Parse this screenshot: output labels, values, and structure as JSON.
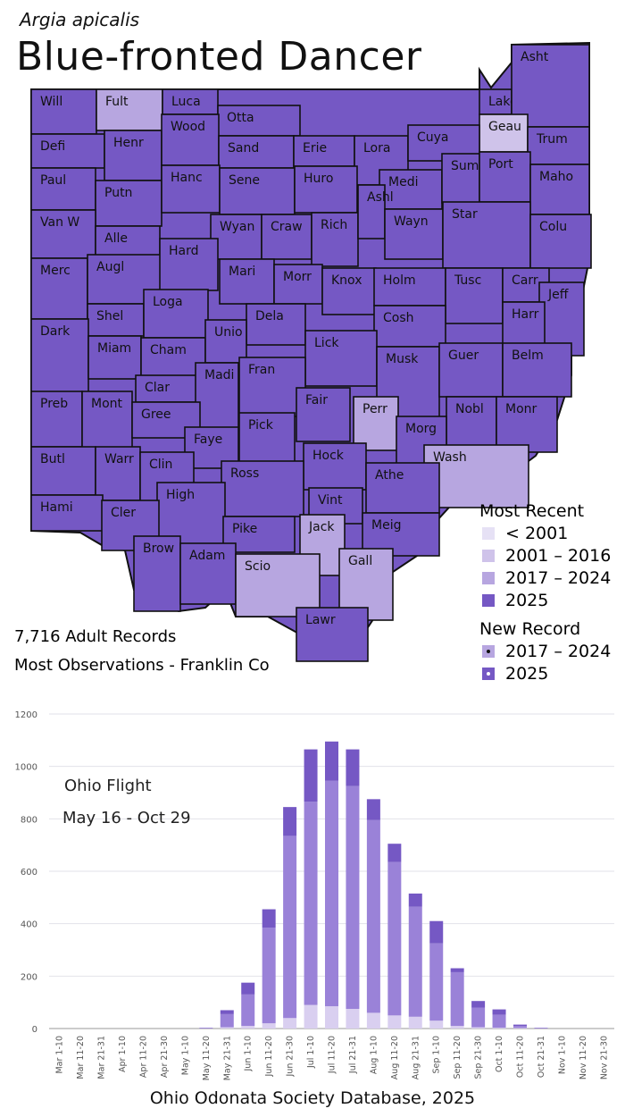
{
  "header": {
    "scientific_name": "Argia apicalis",
    "common_name": "Blue-fronted Dancer"
  },
  "colors": {
    "pre_2001": "#e6e1f5",
    "y2001_2016": "#cfc3ea",
    "y2017_2024": "#b7a6e0",
    "y2025": "#7558c4",
    "bar_bottom": "#d9cff0",
    "bar_middle": "#9a82d8",
    "bar_top": "#7558c4"
  },
  "map": {
    "counties": [
      {
        "name": "Will",
        "status": "2025"
      },
      {
        "name": "Fult",
        "status": "2017-2024"
      },
      {
        "name": "Luca",
        "status": "2025"
      },
      {
        "name": "Otta",
        "status": "2025"
      },
      {
        "name": "Lake",
        "status": "2025"
      },
      {
        "name": "Asht",
        "status": "2025"
      },
      {
        "name": "Geau",
        "status": "2001-2016"
      },
      {
        "name": "Defi",
        "status": "2025"
      },
      {
        "name": "Henr",
        "status": "2025"
      },
      {
        "name": "Wood",
        "status": "2025"
      },
      {
        "name": "Sand",
        "status": "2025"
      },
      {
        "name": "Erie",
        "status": "2025"
      },
      {
        "name": "Lora",
        "status": "2025"
      },
      {
        "name": "Cuya",
        "status": "2025"
      },
      {
        "name": "Trum",
        "status": "2025"
      },
      {
        "name": "Paul",
        "status": "2025"
      },
      {
        "name": "Putn",
        "status": "2025"
      },
      {
        "name": "Hanc",
        "status": "2025"
      },
      {
        "name": "Sene",
        "status": "2025"
      },
      {
        "name": "Huro",
        "status": "2025"
      },
      {
        "name": "Medi",
        "status": "2025"
      },
      {
        "name": "Summ",
        "status": "2025"
      },
      {
        "name": "Port",
        "status": "2025"
      },
      {
        "name": "Maho",
        "status": "2025"
      },
      {
        "name": "Van W",
        "status": "2025"
      },
      {
        "name": "Alle",
        "status": "2025"
      },
      {
        "name": "Wyan",
        "status": "2025"
      },
      {
        "name": "Craw",
        "status": "2025"
      },
      {
        "name": "Rich",
        "status": "2025"
      },
      {
        "name": "Ashl",
        "status": "2025"
      },
      {
        "name": "Wayn",
        "status": "2025"
      },
      {
        "name": "Star",
        "status": "2025"
      },
      {
        "name": "Colu",
        "status": "2025"
      },
      {
        "name": "Merc",
        "status": "2025"
      },
      {
        "name": "Augl",
        "status": "2025"
      },
      {
        "name": "Hard",
        "status": "2025"
      },
      {
        "name": "Mari",
        "status": "2025"
      },
      {
        "name": "Morr",
        "status": "2025"
      },
      {
        "name": "Knox",
        "status": "2025"
      },
      {
        "name": "Holm",
        "status": "2025"
      },
      {
        "name": "Tusc",
        "status": "2025"
      },
      {
        "name": "Carr",
        "status": "2025"
      },
      {
        "name": "Jeff",
        "status": "2025"
      },
      {
        "name": "Shel",
        "status": "2025"
      },
      {
        "name": "Loga",
        "status": "2025"
      },
      {
        "name": "Dela",
        "status": "2025"
      },
      {
        "name": "Cosh",
        "status": "2025"
      },
      {
        "name": "Harr",
        "status": "2025"
      },
      {
        "name": "Dark",
        "status": "2025"
      },
      {
        "name": "Miam",
        "status": "2025"
      },
      {
        "name": "Cham",
        "status": "2025"
      },
      {
        "name": "Unio",
        "status": "2025"
      },
      {
        "name": "Lick",
        "status": "2025"
      },
      {
        "name": "Musk",
        "status": "2025"
      },
      {
        "name": "Guer",
        "status": "2025"
      },
      {
        "name": "Belm",
        "status": "2025"
      },
      {
        "name": "Clar",
        "status": "2025"
      },
      {
        "name": "Fran",
        "status": "2025"
      },
      {
        "name": "Madi",
        "status": "2025"
      },
      {
        "name": "Fair",
        "status": "2025"
      },
      {
        "name": "Perr",
        "status": "2017-2024"
      },
      {
        "name": "Nobl",
        "status": "2025"
      },
      {
        "name": "Monr",
        "status": "2025"
      },
      {
        "name": "Preb",
        "status": "2025"
      },
      {
        "name": "Mont",
        "status": "2025"
      },
      {
        "name": "Gree",
        "status": "2025"
      },
      {
        "name": "Pick",
        "status": "2025"
      },
      {
        "name": "Morg",
        "status": "2025"
      },
      {
        "name": "Faye",
        "status": "2025"
      },
      {
        "name": "Wash",
        "status": "2017-2024"
      },
      {
        "name": "Butl",
        "status": "2025"
      },
      {
        "name": "Warr",
        "status": "2025"
      },
      {
        "name": "Clin",
        "status": "2025"
      },
      {
        "name": "Hock",
        "status": "2025"
      },
      {
        "name": "Athe",
        "status": "2025"
      },
      {
        "name": "Ross",
        "status": "2025"
      },
      {
        "name": "Vint",
        "status": "2025"
      },
      {
        "name": "Hami",
        "status": "2025"
      },
      {
        "name": "High",
        "status": "2025"
      },
      {
        "name": "Cler",
        "status": "2025"
      },
      {
        "name": "Pike",
        "status": "2025"
      },
      {
        "name": "Jack",
        "status": "2017-2024"
      },
      {
        "name": "Meig",
        "status": "2025"
      },
      {
        "name": "Brow",
        "status": "2025"
      },
      {
        "name": "Adam",
        "status": "2025"
      },
      {
        "name": "Scio",
        "status": "2017-2024"
      },
      {
        "name": "Gall",
        "status": "2017-2024"
      },
      {
        "name": "Lawr",
        "status": "2025"
      }
    ],
    "legend": {
      "most_recent_title": "Most Recent",
      "items": [
        {
          "label": "< 2001",
          "color": "#e6e1f5"
        },
        {
          "label": "2001 – 2016",
          "color": "#cfc3ea"
        },
        {
          "label": "2017 – 2024",
          "color": "#b7a6e0"
        },
        {
          "label": "2025",
          "color": "#7558c4"
        }
      ],
      "new_record_title": "New Record",
      "new_items": [
        {
          "label": "2017 – 2024",
          "color": "#b7a6e0"
        },
        {
          "label": "2025",
          "color": "#7558c4"
        }
      ]
    },
    "stats": {
      "records": "7,716 Adult Records",
      "most_obs": "Most Observations - Franklin Co"
    }
  },
  "chart_data": {
    "type": "bar",
    "stacked": true,
    "annotation_title": "Ohio Flight",
    "annotation_range": "May 16 - Oct 29",
    "categories": [
      "Mar 1-10",
      "Mar 11-20",
      "Mar 21-31",
      "Apr 1-10",
      "Apr 11-20",
      "Apr 21-30",
      "May 1-10",
      "May 11-20",
      "May 21-31",
      "Jun 1-10",
      "Jun 11-20",
      "Jun 21-30",
      "Jul 1-10",
      "Jul 11-20",
      "Jul 21-31",
      "Aug 1-10",
      "Aug 11-20",
      "Aug 21-31",
      "Sep 1-10",
      "Sep 11-20",
      "Sep 21-30",
      "Oct 1-10",
      "Oct 11-20",
      "Oct 21-31",
      "Nov 1-10",
      "Nov 11-20",
      "Nov 21-30"
    ],
    "series": [
      {
        "values": [
          0,
          0,
          0,
          0,
          0,
          0,
          0,
          0,
          5,
          10,
          20,
          40,
          90,
          85,
          75,
          60,
          50,
          45,
          30,
          10,
          5,
          3,
          2,
          0,
          0,
          0,
          0
        ]
      },
      {
        "values": [
          0,
          0,
          0,
          0,
          0,
          0,
          0,
          2,
          50,
          120,
          365,
          695,
          775,
          860,
          850,
          735,
          585,
          420,
          295,
          205,
          75,
          50,
          8,
          2,
          0,
          0,
          0
        ]
      },
      {
        "values": [
          0,
          0,
          0,
          0,
          0,
          0,
          0,
          1,
          15,
          45,
          70,
          110,
          200,
          150,
          140,
          80,
          70,
          50,
          85,
          15,
          25,
          20,
          5,
          1,
          0,
          0,
          0
        ]
      }
    ],
    "yticks": [
      0,
      200,
      400,
      600,
      800,
      1000,
      1200
    ],
    "ylim": [
      0,
      1200
    ]
  },
  "footer": {
    "source": "Ohio Odonata Society Database, 2025"
  }
}
